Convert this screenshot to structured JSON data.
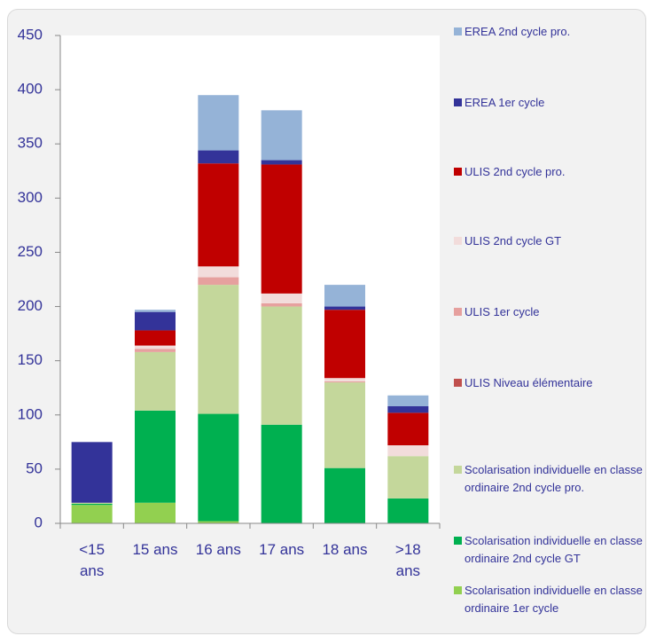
{
  "chart_data": {
    "type": "bar",
    "stacked": true,
    "categories": [
      "<15 ans",
      "15 ans",
      "16 ans",
      "17 ans",
      "18 ans",
      ">18 ans"
    ],
    "series": [
      {
        "name": "Scolarisation individuelle en classe ordinaire 1er cycle",
        "color": "#92d050",
        "values": [
          17,
          19,
          2,
          0,
          0,
          0
        ]
      },
      {
        "name": "Scolarisation individuelle en classe ordinaire 2nd cycle GT",
        "color": "#00b050",
        "values": [
          1,
          85,
          99,
          91,
          51,
          23
        ]
      },
      {
        "name": "Scolarisation individuelle en classe ordinaire 2nd cycle pro.",
        "color": "#c4d79b",
        "values": [
          1,
          54,
          119,
          109,
          79,
          39
        ]
      },
      {
        "name": "ULIS Niveau élémentaire",
        "color": "#c0504d",
        "values": [
          0,
          0,
          0,
          0,
          0,
          0
        ]
      },
      {
        "name": "ULIS 1er cycle",
        "color": "#e6a09e",
        "values": [
          0,
          3,
          7,
          3,
          1,
          0
        ]
      },
      {
        "name": "ULIS 2nd cycle GT",
        "color": "#f2dcdb",
        "values": [
          0,
          3,
          10,
          9,
          3,
          10
        ]
      },
      {
        "name": "ULIS 2nd cycle pro.",
        "color": "#c00000",
        "values": [
          0,
          14,
          95,
          119,
          63,
          30
        ]
      },
      {
        "name": "EREA 1er cycle",
        "color": "#333399",
        "values": [
          56,
          17,
          12,
          4,
          3,
          6
        ]
      },
      {
        "name": "EREA 2nd cycle pro.",
        "color": "#95b3d7",
        "values": [
          0,
          2,
          51,
          46,
          20,
          10
        ]
      }
    ],
    "ylim": [
      0,
      450
    ],
    "yticks": [
      0,
      50,
      100,
      150,
      200,
      250,
      300,
      350,
      400,
      450
    ],
    "grid": false,
    "legend": "right"
  }
}
